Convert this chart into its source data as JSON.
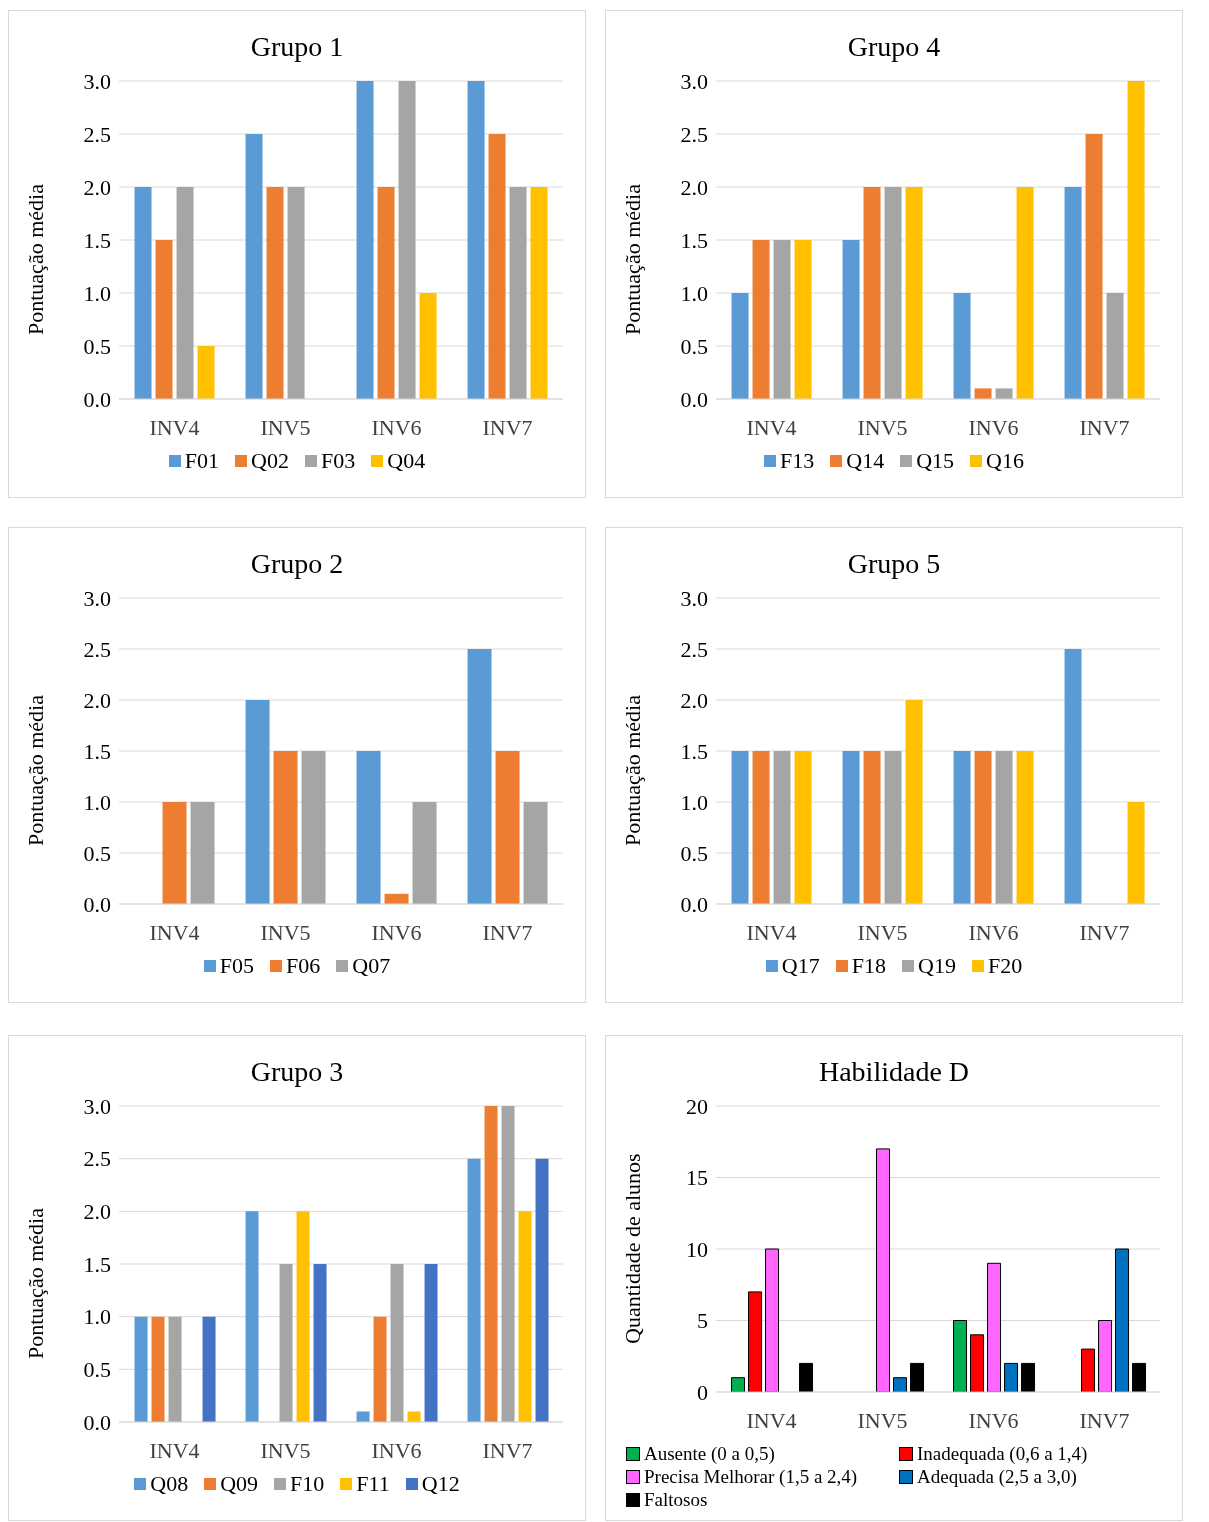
{
  "chart_data": [
    {
      "type": "bar",
      "title": "Grupo 1",
      "ylabel": "Pontuação média",
      "categories": [
        "INV4",
        "INV5",
        "INV6",
        "INV7"
      ],
      "ylim": [
        0,
        3
      ],
      "yticks": [
        {
          "value": 0,
          "label": "0.0"
        },
        {
          "value": 0.5,
          "label": "0.5"
        },
        {
          "value": 1,
          "label": "1.0"
        },
        {
          "value": 1.5,
          "label": "1.5"
        },
        {
          "value": 2,
          "label": "2.0"
        },
        {
          "value": 2.5,
          "label": "2.5"
        },
        {
          "value": 3,
          "label": "3.0"
        }
      ],
      "grid": "y",
      "legend": "bottom",
      "series": [
        {
          "name": "F01",
          "color": "#5b9bd5",
          "values": [
            2,
            2.5,
            3,
            3
          ]
        },
        {
          "name": "Q02",
          "color": "#ed7d31",
          "values": [
            1.5,
            2,
            2,
            2.5
          ]
        },
        {
          "name": "F03",
          "color": "#a5a5a5",
          "values": [
            2,
            2,
            3,
            2
          ]
        },
        {
          "name": "Q04",
          "color": "#ffc000",
          "values": [
            0.5,
            0,
            1,
            2
          ]
        }
      ]
    },
    {
      "type": "bar",
      "title": "Grupo 4",
      "ylabel": "Pontuação média",
      "categories": [
        "INV4",
        "INV5",
        "INV6",
        "INV7"
      ],
      "ylim": [
        0,
        3
      ],
      "yticks": [
        {
          "value": 0,
          "label": "0.0"
        },
        {
          "value": 0.5,
          "label": "0.5"
        },
        {
          "value": 1,
          "label": "1.0"
        },
        {
          "value": 1.5,
          "label": "1.5"
        },
        {
          "value": 2,
          "label": "2.0"
        },
        {
          "value": 2.5,
          "label": "2.5"
        },
        {
          "value": 3,
          "label": "3.0"
        }
      ],
      "grid": "y",
      "legend": "bottom",
      "series": [
        {
          "name": "F13",
          "color": "#5b9bd5",
          "values": [
            1,
            1.5,
            1,
            2
          ]
        },
        {
          "name": "Q14",
          "color": "#ed7d31",
          "values": [
            1.5,
            2,
            0.1,
            2.5
          ]
        },
        {
          "name": "Q15",
          "color": "#a5a5a5",
          "values": [
            1.5,
            2,
            0.1,
            1
          ]
        },
        {
          "name": "Q16",
          "color": "#ffc000",
          "values": [
            1.5,
            2,
            2,
            3
          ]
        }
      ]
    },
    {
      "type": "bar",
      "title": "Grupo 2",
      "ylabel": "Pontuação média",
      "categories": [
        "INV4",
        "INV5",
        "INV6",
        "INV7"
      ],
      "ylim": [
        0,
        3
      ],
      "yticks": [
        {
          "value": 0,
          "label": "0.0"
        },
        {
          "value": 0.5,
          "label": "0.5"
        },
        {
          "value": 1,
          "label": "1.0"
        },
        {
          "value": 1.5,
          "label": "1.5"
        },
        {
          "value": 2,
          "label": "2.0"
        },
        {
          "value": 2.5,
          "label": "2.5"
        },
        {
          "value": 3,
          "label": "3.0"
        }
      ],
      "grid": "y",
      "legend": "bottom",
      "series": [
        {
          "name": "F05",
          "color": "#5b9bd5",
          "values": [
            0,
            2,
            1.5,
            2.5
          ]
        },
        {
          "name": "F06",
          "color": "#ed7d31",
          "values": [
            1,
            1.5,
            0.1,
            1.5
          ]
        },
        {
          "name": "Q07",
          "color": "#a5a5a5",
          "values": [
            1,
            1.5,
            1,
            1
          ]
        }
      ]
    },
    {
      "type": "bar",
      "title": "Grupo 5",
      "ylabel": "Pontuação média",
      "categories": [
        "INV4",
        "INV5",
        "INV6",
        "INV7"
      ],
      "ylim": [
        0,
        3
      ],
      "yticks": [
        {
          "value": 0,
          "label": "0.0"
        },
        {
          "value": 0.5,
          "label": "0.5"
        },
        {
          "value": 1,
          "label": "1.0"
        },
        {
          "value": 1.5,
          "label": "1.5"
        },
        {
          "value": 2,
          "label": "2.0"
        },
        {
          "value": 2.5,
          "label": "2.5"
        },
        {
          "value": 3,
          "label": "3.0"
        }
      ],
      "grid": "y",
      "legend": "bottom",
      "series": [
        {
          "name": "Q17",
          "color": "#5b9bd5",
          "values": [
            1.5,
            1.5,
            1.5,
            2.5
          ]
        },
        {
          "name": "F18",
          "color": "#ed7d31",
          "values": [
            1.5,
            1.5,
            1.5,
            0
          ]
        },
        {
          "name": "Q19",
          "color": "#a5a5a5",
          "values": [
            1.5,
            1.5,
            1.5,
            0
          ]
        },
        {
          "name": "F20",
          "color": "#ffc000",
          "values": [
            1.5,
            2,
            1.5,
            1
          ]
        }
      ]
    },
    {
      "type": "bar",
      "title": "Grupo 3",
      "ylabel": "Pontuação média",
      "categories": [
        "INV4",
        "INV5",
        "INV6",
        "INV7"
      ],
      "ylim": [
        0,
        3
      ],
      "yticks": [
        {
          "value": 0,
          "label": "0.0"
        },
        {
          "value": 0.5,
          "label": "0.5"
        },
        {
          "value": 1,
          "label": "1.0"
        },
        {
          "value": 1.5,
          "label": "1.5"
        },
        {
          "value": 2,
          "label": "2.0"
        },
        {
          "value": 2.5,
          "label": "2.5"
        },
        {
          "value": 3,
          "label": "3.0"
        }
      ],
      "grid": "y",
      "legend": "bottom",
      "series": [
        {
          "name": "Q08",
          "color": "#5b9bd5",
          "values": [
            1,
            2,
            0.1,
            2.5
          ]
        },
        {
          "name": "Q09",
          "color": "#ed7d31",
          "values": [
            1,
            0,
            1,
            3
          ]
        },
        {
          "name": "F10",
          "color": "#a5a5a5",
          "values": [
            1,
            1.5,
            1.5,
            3
          ]
        },
        {
          "name": "F11",
          "color": "#ffc000",
          "values": [
            0,
            2,
            0.1,
            2
          ]
        },
        {
          "name": "Q12",
          "color": "#4472c4",
          "values": [
            1,
            1.5,
            1.5,
            2.5
          ]
        }
      ]
    },
    {
      "type": "bar",
      "title": "Habilidade D",
      "ylabel": "Quantidade de alunos",
      "categories": [
        "INV4",
        "INV5",
        "INV6",
        "INV7"
      ],
      "ylim": [
        0,
        20
      ],
      "yticks": [
        0,
        5,
        10,
        15,
        20
      ],
      "grid": "y",
      "legend": "bottom",
      "series": [
        {
          "name": "Ausente (0 a 0,5)",
          "color": "#00b050",
          "values": [
            1,
            0,
            5,
            0
          ]
        },
        {
          "name": "Inadequada (0,6 a 1,4)",
          "color": "#ff0000",
          "values": [
            7,
            0,
            4,
            3
          ]
        },
        {
          "name": "Precisa Melhorar (1,5 a 2,4)",
          "color": "#ff66ff",
          "values": [
            10,
            17,
            9,
            5
          ]
        },
        {
          "name": "Adequada (2,5 a 3,0)",
          "color": "#0070c0",
          "values": [
            0,
            1,
            2,
            10
          ]
        },
        {
          "name": "Faltosos",
          "color": "#000000",
          "values": [
            2,
            2,
            2,
            2
          ]
        }
      ]
    }
  ]
}
